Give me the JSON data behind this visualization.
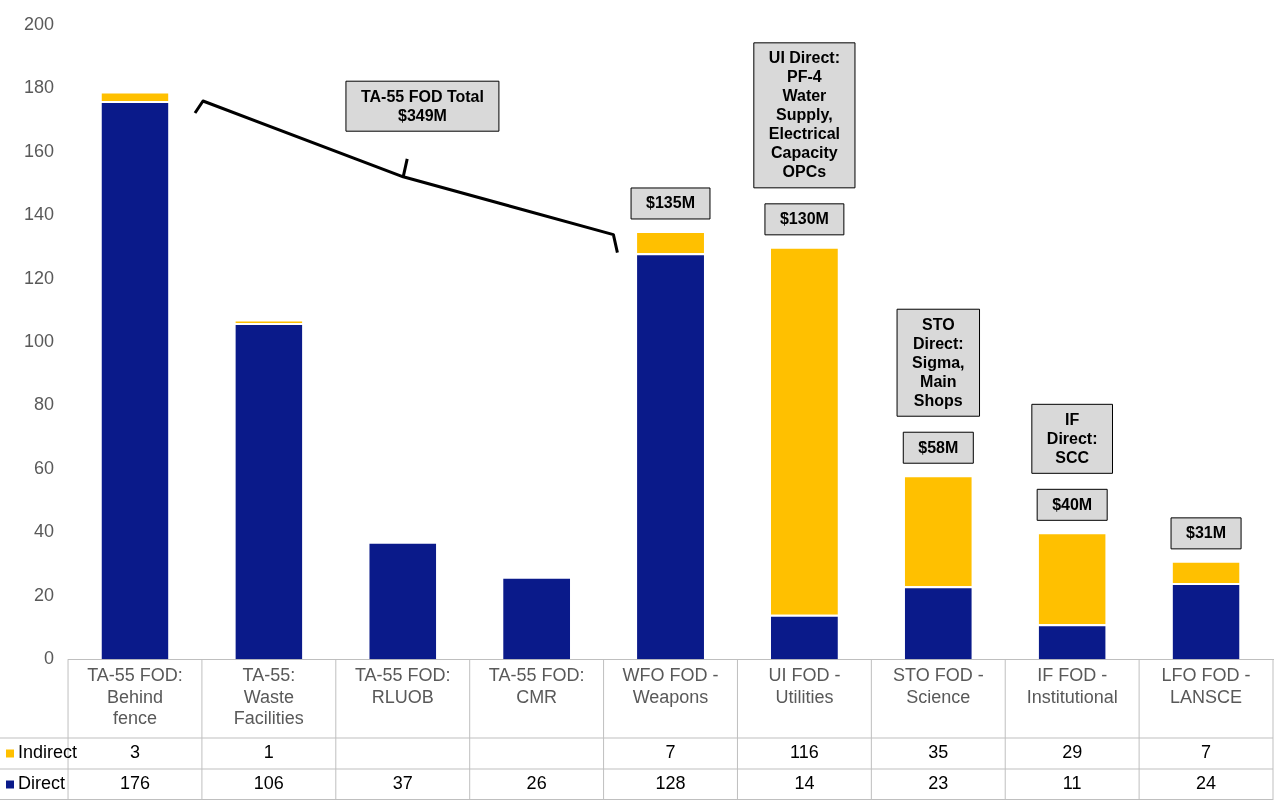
{
  "chart_data": {
    "type": "bar",
    "stacked": true,
    "data_labels": true,
    "legend": "bottom",
    "grid": false,
    "categories": [
      "TA-55 FOD:\nBehind\nfence",
      "TA-55:\nWaste\nFacilities",
      "TA-55 FOD:\nRLUOB",
      "TA-55 FOD:\nCMR",
      "WFO FOD -\nWeapons",
      "UI FOD -\nUtilities",
      "STO FOD -\nScience",
      "IF FOD -\nInstitutional",
      "LFO FOD -\nLANSCE"
    ],
    "series": [
      {
        "name": "Direct",
        "color": "#0a1a8a",
        "values": [
          176,
          106,
          37,
          26,
          128,
          14,
          23,
          11,
          24
        ]
      },
      {
        "name": "Indirect",
        "color": "#ffc000",
        "values": [
          3,
          1,
          null,
          null,
          7,
          116,
          35,
          29,
          7
        ]
      }
    ],
    "ylim": [
      0,
      200
    ],
    "yticks": [
      0,
      20,
      40,
      60,
      80,
      100,
      120,
      140,
      160,
      180,
      200
    ],
    "annotations": [
      "TA-55 FOD Total\n$349M",
      {
        "text": "$135M",
        "x": "WFO FOD -\nWeapons",
        "y": 135
      },
      {
        "text": "$130M",
        "x": "UI FOD -\nUtilities",
        "y": 130
      },
      "UI Direct:\nPF-4\nWater\nSupply,\nElectrical\nCapacity\nOPCs",
      {
        "text": "$58M",
        "x": "STO FOD -\nScience",
        "y": 58
      },
      "STO\nDirect:\nSigma,\nMain\nShops",
      {
        "text": "$40M",
        "x": "IF FOD -\nInstitutional",
        "y": 40
      },
      "IF\nDirect:\nSCC",
      {
        "text": "$31M",
        "x": "LFO FOD -\nLANSCE",
        "y": 31
      }
    ]
  }
}
